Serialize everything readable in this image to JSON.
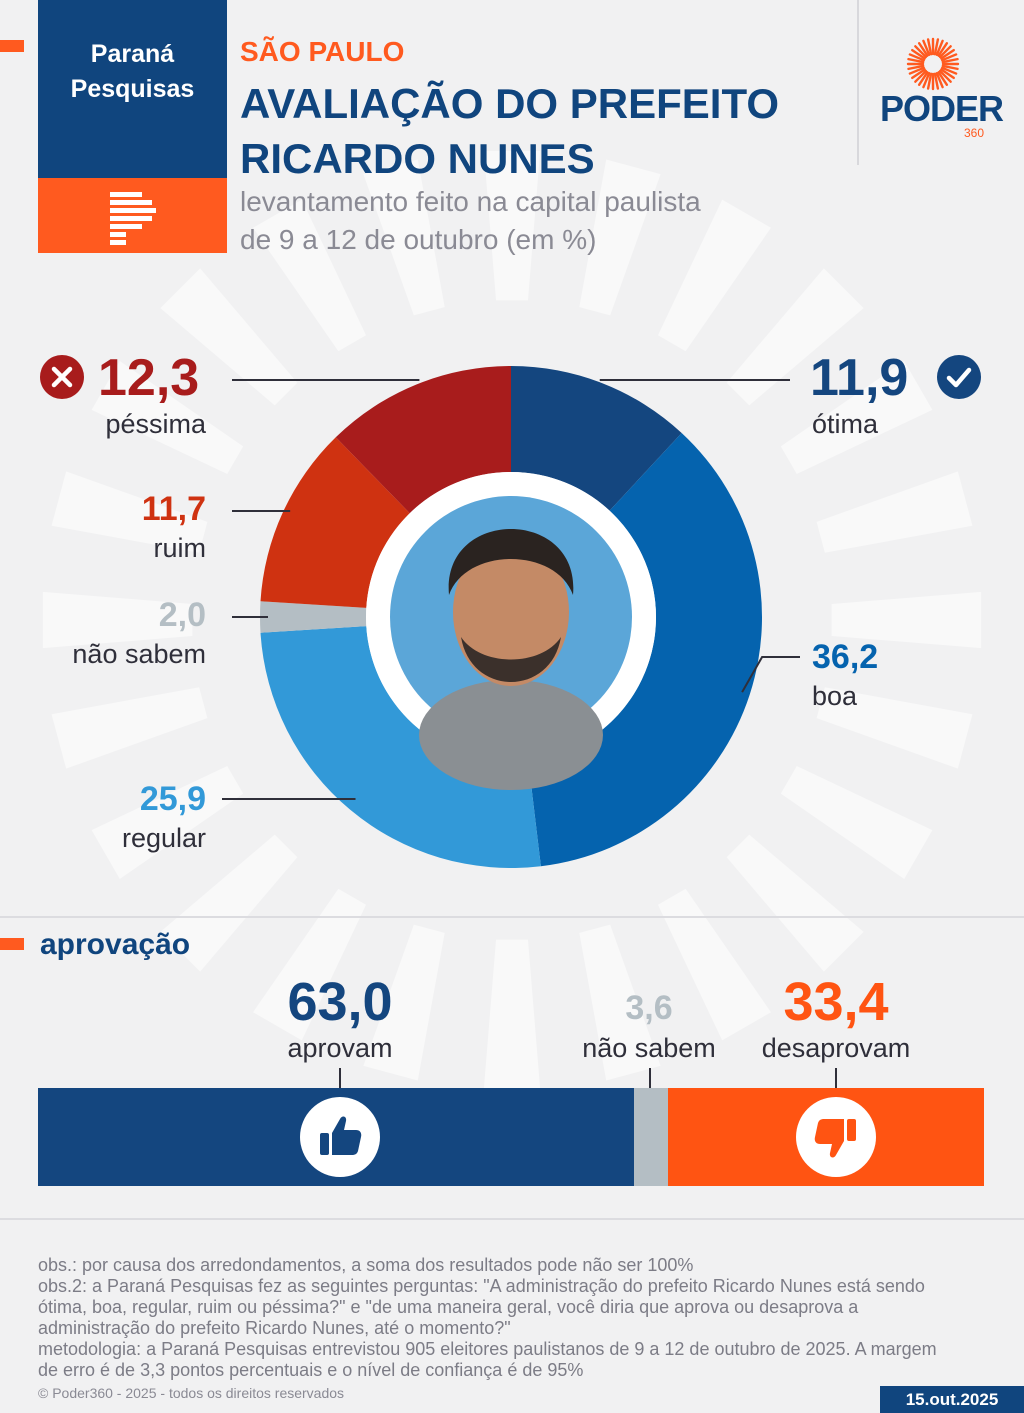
{
  "source": {
    "name_line1": "Paraná",
    "name_line2": "Pesquisas"
  },
  "header": {
    "kicker": "SÃO PAULO",
    "title_line1": "AVALIAÇÃO DO PREFEITO",
    "title_line2": "RICARDO NUNES",
    "subtitle_line1": "levantamento feito na capital paulista",
    "subtitle_line2": "de 9 a 12 de outubro (em %)"
  },
  "brand": {
    "name": "PODER",
    "number": "360"
  },
  "colors": {
    "otima": "#14467f",
    "boa": "#0563ae",
    "regular": "#3299d8",
    "nao_sabem": "#b4bec4",
    "ruim": "#cf3211",
    "pessima": "#a81c1c",
    "approve": "#14467f",
    "disapprove": "#ff5412",
    "accent": "#ff5a1f"
  },
  "chart_data": [
    {
      "type": "pie",
      "categories": [
        "ótima",
        "boa",
        "regular",
        "não sabem",
        "ruim",
        "péssima"
      ],
      "values": [
        11.9,
        36.2,
        25.9,
        2.0,
        11.7,
        12.3
      ],
      "value_labels": [
        "11,9",
        "36,2",
        "25,9",
        "2,0",
        "11,7",
        "12,3"
      ],
      "series": [
        {
          "name": "",
          "values": [
            11.9,
            36.2,
            25.9,
            2.0,
            11.7,
            12.3
          ]
        }
      ]
    },
    {
      "type": "bar",
      "categories": [
        "aprovam",
        "não sabem",
        "desaprovam"
      ],
      "values": [
        63.0,
        3.6,
        33.4
      ],
      "value_labels": [
        "63,0",
        "3,6",
        "33,4"
      ],
      "stacked": true
    }
  ],
  "approval": {
    "heading": "aprovação"
  },
  "notes": [
    "obs.: por causa dos arredondamentos, a soma dos resultados pode não ser 100%",
    "obs.2: a Paraná Pesquisas fez as seguintes perguntas: \"A administração do prefeito Ricardo Nunes está sendo",
    "ótima, boa, regular, ruim ou péssima?\" e \"de uma maneira geral, você diria que aprova ou desaprova a",
    "administração do prefeito Ricardo Nunes, até o momento?\"",
    "metodologia: a Paraná Pesquisas entrevistou 905 eleitores paulistanos de 9 a 12 de outubro de 2025. A margem",
    "de erro é de 3,3 pontos percentuais e o nível de confiança é de 95%"
  ],
  "footer": {
    "copyright": "© Poder360 - 2025 - todos os direitos reservados",
    "date": "15.out.2025"
  }
}
